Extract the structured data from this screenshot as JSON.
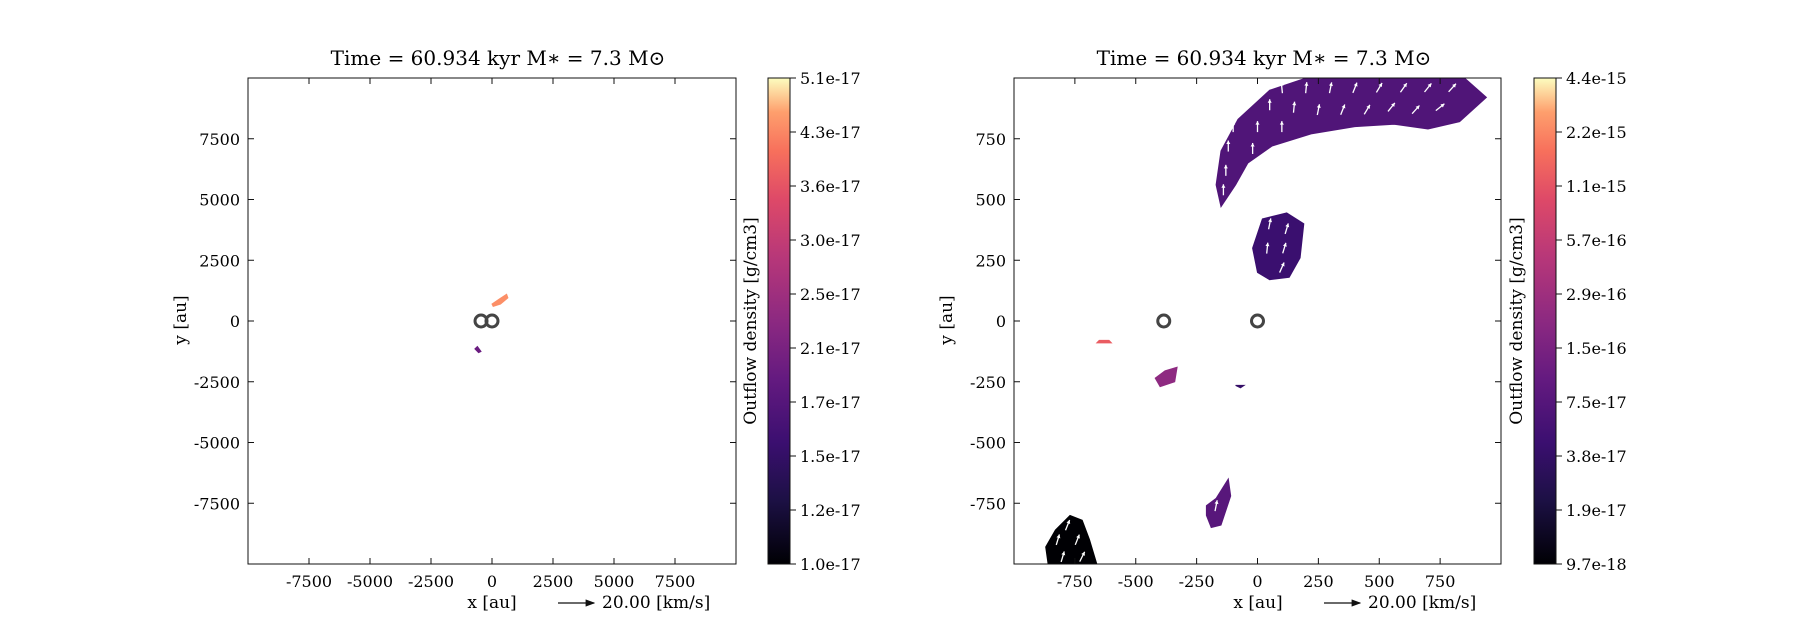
{
  "chart_data": [
    {
      "type": "heatmap",
      "panel": "left",
      "title": "Time = 60.934 kyr    M∗ = 7.3 M⊙",
      "xlabel": "x [au]",
      "ylabel": "y [au]",
      "xlim": [
        -10000,
        10000
      ],
      "ylim": [
        -10000,
        10000
      ],
      "xticks": [
        -7500,
        -5000,
        -2500,
        0,
        2500,
        5000,
        7500
      ],
      "yticks": [
        -7500,
        -5000,
        -2500,
        0,
        2500,
        5000,
        7500
      ],
      "colorbar_label": "Outflow density [g/cm3]",
      "colorbar_ticks": [
        "1.0e-17",
        "1.2e-17",
        "1.5e-17",
        "1.7e-17",
        "2.1e-17",
        "2.5e-17",
        "3.0e-17",
        "3.6e-17",
        "4.3e-17",
        "5.1e-17"
      ],
      "colormap": "magma",
      "quiver_key": "20.00 [km/s]",
      "sinks": [
        {
          "x": -450,
          "y": 0
        },
        {
          "x": 0,
          "y": 0
        }
      ],
      "blobs": [
        {
          "level": 0.85,
          "points": [
            [
              0,
              700
            ],
            [
              300,
              900
            ],
            [
              600,
              1100
            ],
            [
              650,
              950
            ],
            [
              350,
              700
            ],
            [
              50,
              600
            ]
          ]
        },
        {
          "level": 0.35,
          "points": [
            [
              -600,
              -1050
            ],
            [
              -450,
              -1250
            ],
            [
              -550,
              -1300
            ],
            [
              -700,
              -1150
            ]
          ]
        }
      ],
      "arrows": []
    },
    {
      "type": "heatmap",
      "panel": "right",
      "title": "Time = 60.934 kyr    M∗ = 7.3 M⊙",
      "xlabel": "x [au]",
      "ylabel": "y [au]",
      "xlim": [
        -1000,
        1000
      ],
      "ylim": [
        -1000,
        1000
      ],
      "xticks": [
        -750,
        -500,
        -250,
        0,
        250,
        500,
        750
      ],
      "yticks": [
        -750,
        -500,
        -250,
        0,
        250,
        500,
        750
      ],
      "colorbar_label": "Outflow density [g/cm3]",
      "colorbar_ticks": [
        "9.7e-18",
        "1.9e-17",
        "3.8e-17",
        "7.5e-17",
        "1.5e-16",
        "2.9e-16",
        "5.7e-16",
        "1.1e-15",
        "2.2e-15",
        "4.4e-15"
      ],
      "colormap": "magma",
      "quiver_key": "20.00 [km/s]",
      "sinks": [
        {
          "x": -385,
          "y": 0
        },
        {
          "x": 0,
          "y": 0
        }
      ],
      "blobs": [
        {
          "level": 0.28,
          "points": [
            [
              -150,
              470
            ],
            [
              -170,
              560
            ],
            [
              -150,
              700
            ],
            [
              -80,
              830
            ],
            [
              50,
              950
            ],
            [
              200,
              1000
            ],
            [
              480,
              1000
            ],
            [
              700,
              1000
            ],
            [
              850,
              1000
            ],
            [
              940,
              920
            ],
            [
              830,
              820
            ],
            [
              700,
              790
            ],
            [
              560,
              810
            ],
            [
              400,
              800
            ],
            [
              220,
              770
            ],
            [
              60,
              720
            ],
            [
              -40,
              650
            ],
            [
              -90,
              560
            ]
          ]
        },
        {
          "level": 0.22,
          "points": [
            [
              -20,
              300
            ],
            [
              20,
              420
            ],
            [
              120,
              445
            ],
            [
              190,
              400
            ],
            [
              175,
              260
            ],
            [
              130,
              180
            ],
            [
              50,
              170
            ],
            [
              0,
              200
            ]
          ]
        },
        {
          "level": 0.45,
          "points": [
            [
              -420,
              -235
            ],
            [
              -380,
              -205
            ],
            [
              -330,
              -190
            ],
            [
              -340,
              -250
            ],
            [
              -400,
              -270
            ]
          ]
        },
        {
          "level": 0.72,
          "points": [
            [
              -650,
              -80
            ],
            [
              -610,
              -80
            ],
            [
              -600,
              -90
            ],
            [
              -660,
              -90
            ]
          ]
        },
        {
          "level": 0.2,
          "points": [
            [
              -90,
              -265
            ],
            [
              -55,
              -265
            ],
            [
              -70,
              -275
            ]
          ]
        },
        {
          "level": 0.3,
          "points": [
            [
              -210,
              -760
            ],
            [
              -170,
              -730
            ],
            [
              -120,
              -650
            ],
            [
              -110,
              -720
            ],
            [
              -150,
              -840
            ],
            [
              -190,
              -850
            ],
            [
              -210,
              -800
            ]
          ]
        },
        {
          "level": 0.0,
          "points": [
            [
              -860,
              -1000
            ],
            [
              -870,
              -930
            ],
            [
              -830,
              -860
            ],
            [
              -770,
              -800
            ],
            [
              -720,
              -820
            ],
            [
              -690,
              -900
            ],
            [
              -660,
              -1000
            ]
          ]
        }
      ],
      "arrows": [
        {
          "x": 0,
          "y": 960,
          "dx": -0.1,
          "dy": 1
        },
        {
          "x": 100,
          "y": 960,
          "dx": -0.1,
          "dy": 1
        },
        {
          "x": 200,
          "y": 960,
          "dx": 0.1,
          "dy": 1
        },
        {
          "x": 300,
          "y": 960,
          "dx": 0.2,
          "dy": 1
        },
        {
          "x": 400,
          "y": 960,
          "dx": 0.4,
          "dy": 1
        },
        {
          "x": 500,
          "y": 960,
          "dx": 0.6,
          "dy": 1
        },
        {
          "x": 600,
          "y": 960,
          "dx": 0.7,
          "dy": 1
        },
        {
          "x": 700,
          "y": 960,
          "dx": 0.8,
          "dy": 1
        },
        {
          "x": 800,
          "y": 960,
          "dx": 0.9,
          "dy": 1
        },
        {
          "x": -50,
          "y": 890,
          "dx": 0,
          "dy": 1
        },
        {
          "x": 50,
          "y": 890,
          "dx": 0,
          "dy": 1
        },
        {
          "x": 150,
          "y": 880,
          "dx": 0.1,
          "dy": 1
        },
        {
          "x": 250,
          "y": 870,
          "dx": 0.2,
          "dy": 1
        },
        {
          "x": 350,
          "y": 870,
          "dx": 0.4,
          "dy": 1
        },
        {
          "x": 450,
          "y": 870,
          "dx": 0.6,
          "dy": 1
        },
        {
          "x": 550,
          "y": 880,
          "dx": 0.8,
          "dy": 1
        },
        {
          "x": 650,
          "y": 870,
          "dx": 0.9,
          "dy": 1
        },
        {
          "x": 750,
          "y": 880,
          "dx": 1,
          "dy": 0.8
        },
        {
          "x": -100,
          "y": 800,
          "dx": 0,
          "dy": 1
        },
        {
          "x": 0,
          "y": 800,
          "dx": 0,
          "dy": 1
        },
        {
          "x": 100,
          "y": 800,
          "dx": 0,
          "dy": 1
        },
        {
          "x": -120,
          "y": 720,
          "dx": 0,
          "dy": 1
        },
        {
          "x": -20,
          "y": 710,
          "dx": 0,
          "dy": 1
        },
        {
          "x": -130,
          "y": 620,
          "dx": 0,
          "dy": 1
        },
        {
          "x": -140,
          "y": 540,
          "dx": 0,
          "dy": 1
        },
        {
          "x": 50,
          "y": 400,
          "dx": 0.2,
          "dy": 1
        },
        {
          "x": 120,
          "y": 380,
          "dx": 0.3,
          "dy": 1
        },
        {
          "x": 40,
          "y": 300,
          "dx": 0.1,
          "dy": 1
        },
        {
          "x": 110,
          "y": 300,
          "dx": 0.3,
          "dy": 1
        },
        {
          "x": 100,
          "y": 220,
          "dx": 0.4,
          "dy": 0.9
        },
        {
          "x": -170,
          "y": -760,
          "dx": 0.2,
          "dy": 1
        },
        {
          "x": -820,
          "y": -900,
          "dx": 0.3,
          "dy": 1
        },
        {
          "x": -740,
          "y": -900,
          "dx": 0.4,
          "dy": 1
        },
        {
          "x": -800,
          "y": -970,
          "dx": 0.3,
          "dy": 1
        },
        {
          "x": -720,
          "y": -970,
          "dx": 0.5,
          "dy": 1
        },
        {
          "x": -780,
          "y": -840,
          "dx": 0.4,
          "dy": 1
        }
      ]
    }
  ]
}
